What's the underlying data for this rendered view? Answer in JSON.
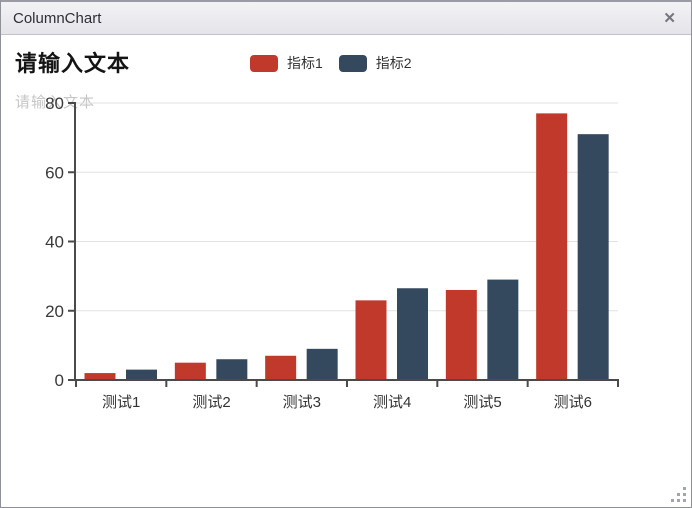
{
  "window": {
    "title": "ColumnChart",
    "close_glyph": "✕"
  },
  "chart": {
    "title": "请输入文本",
    "subtitle": "请输入文本"
  },
  "chart_data": {
    "type": "bar",
    "title": "请输入文本",
    "subtitle": "请输入文本",
    "categories": [
      "测试1",
      "测试2",
      "测试3",
      "测试4",
      "测试5",
      "测试6"
    ],
    "series": [
      {
        "name": "指标1",
        "color": "#c0392b",
        "values": [
          2,
          5,
          7,
          23,
          26,
          77
        ]
      },
      {
        "name": "指标2",
        "color": "#34495e",
        "values": [
          3,
          6,
          9,
          26.5,
          29,
          71
        ]
      }
    ],
    "ylim": [
      0,
      80
    ],
    "yticks": [
      0,
      20,
      40,
      60,
      80
    ],
    "xlabel": "",
    "ylabel": "",
    "grid": true,
    "legend_position": "top",
    "colors": {
      "axis": "#4a4a4a",
      "gridline": "#e2e2e2",
      "tick_label": "#3a3a3a",
      "category_label": "#333333"
    }
  }
}
